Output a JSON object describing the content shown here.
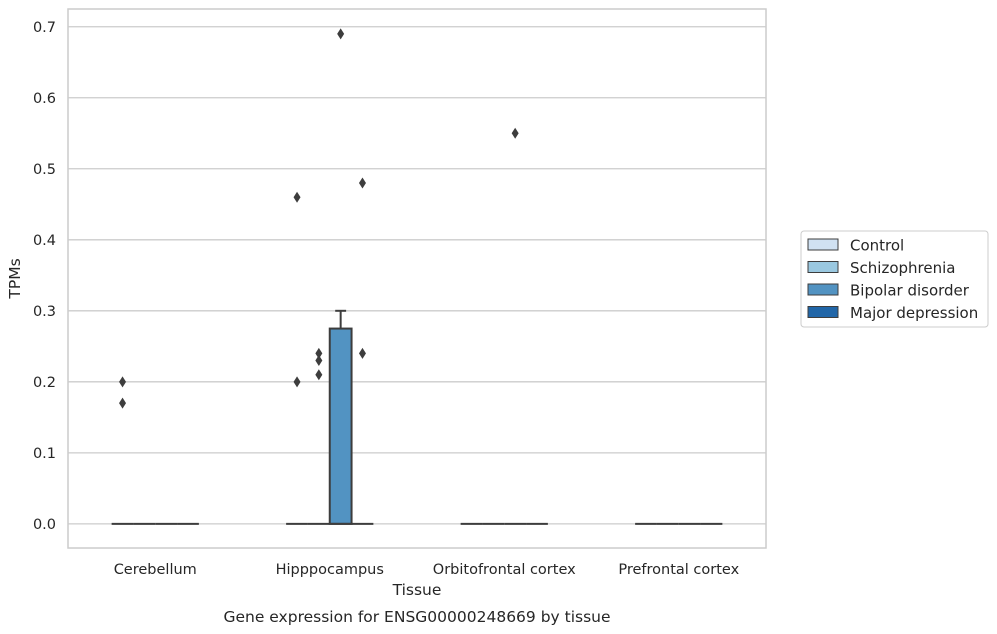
{
  "chart_data": {
    "type": "box",
    "categories": [
      "Cerebellum",
      "Hipppocampus",
      "Orbitofrontal cortex",
      "Prefrontal cortex"
    ],
    "xlabel": "Tissue",
    "ylabel": "TPMs",
    "caption": "Gene expression for ENSG00000248669 by tissue",
    "ylim": [
      -0.034,
      0.725
    ],
    "yticks": [
      "0.0",
      "0.1",
      "0.2",
      "0.3",
      "0.4",
      "0.5",
      "0.6",
      "0.7"
    ],
    "grid": "horizontal",
    "legend_position": "right",
    "series": [
      {
        "name": "Control",
        "color": "#d0e1f2",
        "boxes": [
          {
            "q1": 0,
            "median": 0,
            "q3": 0,
            "whisker_low": 0,
            "whisker_high": 0,
            "outliers": [
              0.2,
              0.17
            ]
          },
          {
            "q1": 0,
            "median": 0,
            "q3": 0,
            "whisker_low": 0,
            "whisker_high": 0,
            "outliers": [
              0.2,
              0.46
            ]
          },
          {
            "q1": 0,
            "median": 0,
            "q3": 0,
            "whisker_low": 0,
            "whisker_high": 0,
            "outliers": []
          },
          {
            "q1": 0,
            "median": 0,
            "q3": 0,
            "whisker_low": 0,
            "whisker_high": 0,
            "outliers": []
          }
        ]
      },
      {
        "name": "Schizophrenia",
        "color": "#9ac8e0",
        "boxes": [
          {
            "q1": 0,
            "median": 0,
            "q3": 0,
            "whisker_low": 0,
            "whisker_high": 0,
            "outliers": []
          },
          {
            "q1": 0,
            "median": 0,
            "q3": 0,
            "whisker_low": 0,
            "whisker_high": 0,
            "outliers": [
              0.24,
              0.23,
              0.21
            ]
          },
          {
            "q1": 0,
            "median": 0,
            "q3": 0,
            "whisker_low": 0,
            "whisker_high": 0,
            "outliers": []
          },
          {
            "q1": 0,
            "median": 0,
            "q3": 0,
            "whisker_low": 0,
            "whisker_high": 0,
            "outliers": []
          }
        ]
      },
      {
        "name": "Bipolar disorder",
        "color": "#5293c2",
        "boxes": [
          {
            "q1": 0,
            "median": 0,
            "q3": 0,
            "whisker_low": 0,
            "whisker_high": 0,
            "outliers": []
          },
          {
            "q1": 0,
            "median": 0,
            "q3": 0.275,
            "whisker_low": 0,
            "whisker_high": 0.3,
            "outliers": [
              0.69
            ]
          },
          {
            "q1": 0,
            "median": 0,
            "q3": 0,
            "whisker_low": 0,
            "whisker_high": 0,
            "outliers": [
              0.55
            ]
          },
          {
            "q1": 0,
            "median": 0,
            "q3": 0,
            "whisker_low": 0,
            "whisker_high": 0,
            "outliers": []
          }
        ]
      },
      {
        "name": "Major depression",
        "color": "#2166a8",
        "boxes": [
          {
            "q1": 0,
            "median": 0,
            "q3": 0,
            "whisker_low": 0,
            "whisker_high": 0,
            "outliers": []
          },
          {
            "q1": 0,
            "median": 0,
            "q3": 0,
            "whisker_low": 0,
            "whisker_high": 0,
            "outliers": [
              0.48,
              0.24
            ]
          },
          {
            "q1": 0,
            "median": 0,
            "q3": 0,
            "whisker_low": 0,
            "whisker_high": 0,
            "outliers": []
          },
          {
            "q1": 0,
            "median": 0,
            "q3": 0,
            "whisker_low": 0,
            "whisker_high": 0,
            "outliers": []
          }
        ]
      }
    ]
  }
}
